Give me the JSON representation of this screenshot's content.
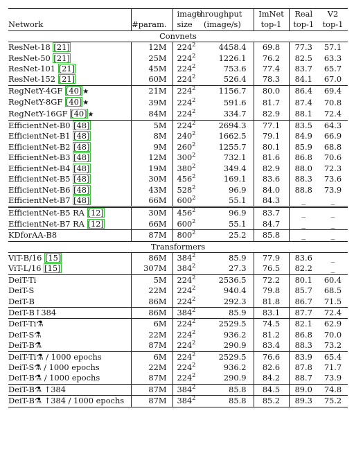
{
  "header": {
    "network": "Network",
    "param": "#param.",
    "image": "image",
    "throughput": "throughput",
    "size": "size",
    "unit": "(image/s)",
    "imnet": "ImNet",
    "real": "Real",
    "v2": "V2",
    "top1": "top-1"
  },
  "sections": {
    "convnets": "Convnets",
    "transformers": "Transformers"
  },
  "rows": [
    {
      "name": "ResNet-18 ",
      "cite": "[21]",
      "suffix": "",
      "param": "12M",
      "size": "224",
      "throughput": "4458.4",
      "imnet": "69.8",
      "real": "77.3",
      "v2": "57.1"
    },
    {
      "name": "ResNet-50 ",
      "cite": "[21]",
      "suffix": "",
      "param": "25M",
      "size": "224",
      "throughput": "1226.1",
      "imnet": "76.2",
      "real": "82.5",
      "v2": "63.3"
    },
    {
      "name": "ResNet-101 ",
      "cite": "[21]",
      "suffix": "",
      "param": "45M",
      "size": "224",
      "throughput": "753.6",
      "imnet": "77.4",
      "real": "83.7",
      "v2": "65.7"
    },
    {
      "name": "ResNet-152 ",
      "cite": "[21]",
      "suffix": "",
      "param": "60M",
      "size": "224",
      "throughput": "526.4",
      "imnet": "78.3",
      "real": "84.1",
      "v2": "67.0"
    },
    {
      "name": "RegNetY-4GF ",
      "cite": "[40]",
      "suffix": "★",
      "param": "21M",
      "size": "224",
      "throughput": "1156.7",
      "imnet": "80.0",
      "real": "86.4",
      "v2": "69.4"
    },
    {
      "name": "RegNetY-8GF ",
      "cite": "[40]",
      "suffix": "★",
      "param": "39M",
      "size": "224",
      "throughput": "591.6",
      "imnet": "81.7",
      "real": "87.4",
      "v2": "70.8"
    },
    {
      "name": "RegNetY-16GF ",
      "cite": "[40]",
      "suffix": "★",
      "param": "84M",
      "size": "224",
      "throughput": "334.7",
      "imnet": "82.9",
      "real": "88.1",
      "v2": "72.4"
    },
    {
      "name": "EfficientNet-B0 ",
      "cite": "[48]",
      "suffix": "",
      "param": "5M",
      "size": "224",
      "throughput": "2694.3",
      "imnet": "77.1",
      "real": "83.5",
      "v2": "64.3"
    },
    {
      "name": "EfficientNet-B1 ",
      "cite": "[48]",
      "suffix": "",
      "param": "8M",
      "size": "240",
      "throughput": "1662.5",
      "imnet": "79.1",
      "real": "84.9",
      "v2": "66.9"
    },
    {
      "name": "EfficientNet-B2 ",
      "cite": "[48]",
      "suffix": "",
      "param": "9M",
      "size": "260",
      "throughput": "1255.7",
      "imnet": "80.1",
      "real": "85.9",
      "v2": "68.8"
    },
    {
      "name": "EfficientNet-B3 ",
      "cite": "[48]",
      "suffix": "",
      "param": "12M",
      "size": "300",
      "throughput": "732.1",
      "imnet": "81.6",
      "real": "86.8",
      "v2": "70.6"
    },
    {
      "name": "EfficientNet-B4 ",
      "cite": "[48]",
      "suffix": "",
      "param": "19M",
      "size": "380",
      "throughput": "349.4",
      "imnet": "82.9",
      "real": "88.0",
      "v2": "72.3"
    },
    {
      "name": "EfficientNet-B5 ",
      "cite": "[48]",
      "suffix": "",
      "param": "30M",
      "size": "456",
      "throughput": "169.1",
      "imnet": "83.6",
      "real": "88.3",
      "v2": "73.6"
    },
    {
      "name": "EfficientNet-B6 ",
      "cite": "[48]",
      "suffix": "",
      "param": "43M",
      "size": "528",
      "throughput": "96.9",
      "imnet": "84.0",
      "real": "88.8",
      "v2": "73.9"
    },
    {
      "name": "EfficientNet-B7 ",
      "cite": "[48]",
      "suffix": "",
      "param": "66M",
      "size": "600",
      "throughput": "55.1",
      "imnet": "84.3",
      "real": "_",
      "v2": "_"
    },
    {
      "name": "EfficientNet-B5 RA ",
      "cite": "[12]",
      "suffix": "",
      "param": "30M",
      "size": "456",
      "throughput": "96.9",
      "imnet": "83.7",
      "real": "_",
      "v2": "_"
    },
    {
      "name": "EfficientNet-B7 RA ",
      "cite": "[12]",
      "suffix": "",
      "param": "66M",
      "size": "600",
      "throughput": "55.1",
      "imnet": "84.7",
      "real": "_",
      "v2": "_"
    },
    {
      "name": "KDforAA-B8",
      "cite": "",
      "suffix": "",
      "param": "87M",
      "size": "800",
      "throughput": "25.2",
      "imnet": "85.8",
      "real": "_",
      "v2": "_"
    },
    {
      "name": "ViT-B/16 ",
      "cite": "[15]",
      "suffix": "",
      "param": "86M",
      "size": "384",
      "throughput": "85.9",
      "imnet": "77.9",
      "real": "83.6",
      "v2": "_"
    },
    {
      "name": "ViT-L/16 ",
      "cite": "[15]",
      "suffix": "",
      "param": "307M",
      "size": "384",
      "throughput": "27.3",
      "imnet": "76.5",
      "real": "82.2",
      "v2": "_"
    },
    {
      "name": "DeiT-Ti",
      "cite": "",
      "suffix": "",
      "param": "5M",
      "size": "224",
      "throughput": "2536.5",
      "imnet": "72.2",
      "real": "80.1",
      "v2": "60.4"
    },
    {
      "name": "DeiT-S",
      "cite": "",
      "suffix": "",
      "param": "22M",
      "size": "224",
      "throughput": "940.4",
      "imnet": "79.8",
      "real": "85.7",
      "v2": "68.5"
    },
    {
      "name": "DeiT-B",
      "cite": "",
      "suffix": "",
      "param": "86M",
      "size": "224",
      "throughput": "292.3",
      "imnet": "81.8",
      "real": "86.7",
      "v2": "71.5"
    },
    {
      "name": "DeiT-B↑384",
      "cite": "",
      "suffix": "",
      "param": "86M",
      "size": "384",
      "throughput": "85.9",
      "imnet": "83.1",
      "real": "87.7",
      "v2": "72.4"
    },
    {
      "name": "DeiT-Ti⚗",
      "cite": "",
      "suffix": "",
      "param": "6M",
      "size": "224",
      "throughput": "2529.5",
      "imnet": "74.5",
      "real": "82.1",
      "v2": "62.9"
    },
    {
      "name": "DeiT-S⚗",
      "cite": "",
      "suffix": "",
      "param": "22M",
      "size": "224",
      "throughput": "936.2",
      "imnet": "81.2",
      "real": "86.8",
      "v2": "70.0"
    },
    {
      "name": "DeiT-B⚗",
      "cite": "",
      "suffix": "",
      "param": "87M",
      "size": "224",
      "throughput": "290.9",
      "imnet": "83.4",
      "real": "88.3",
      "v2": "73.2"
    },
    {
      "name": "DeiT-Ti⚗ / 1000 epochs",
      "cite": "",
      "suffix": "",
      "param": "6M",
      "size": "224",
      "throughput": "2529.5",
      "imnet": "76.6",
      "real": "83.9",
      "v2": "65.4"
    },
    {
      "name": "DeiT-S⚗ / 1000 epochs",
      "cite": "",
      "suffix": "",
      "param": "22M",
      "size": "224",
      "throughput": "936.2",
      "imnet": "82.6",
      "real": "87.8",
      "v2": "71.7"
    },
    {
      "name": "DeiT-B⚗ / 1000 epochs",
      "cite": "",
      "suffix": "",
      "param": "87M",
      "size": "224",
      "throughput": "290.9",
      "imnet": "84.2",
      "real": "88.7",
      "v2": "73.9"
    },
    {
      "name": "DeiT-B⚗ ↑384",
      "cite": "",
      "suffix": "",
      "param": "87M",
      "size": "384",
      "throughput": "85.8",
      "imnet": "84.5",
      "real": "89.0",
      "v2": "74.8"
    },
    {
      "name": "DeiT-B⚗ ↑384 / 1000 epochs",
      "cite": "",
      "suffix": "",
      "param": "87M",
      "size": "384",
      "throughput": "85.8",
      "imnet": "85.2",
      "real": "89.3",
      "v2": "75.2"
    }
  ],
  "exponent": "2"
}
